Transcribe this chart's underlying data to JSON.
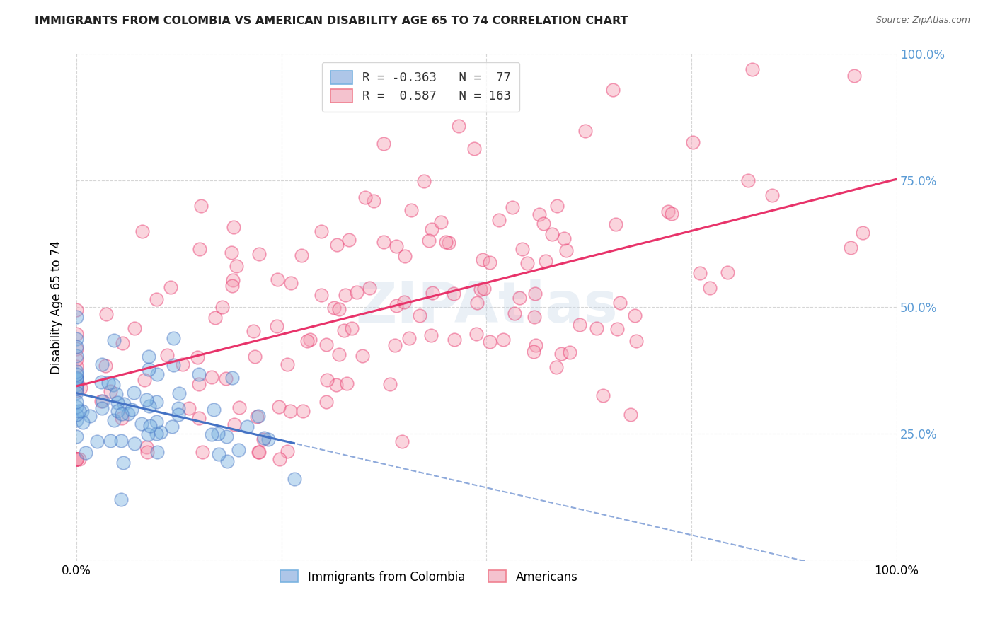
{
  "title": "IMMIGRANTS FROM COLOMBIA VS AMERICAN DISABILITY AGE 65 TO 74 CORRELATION CHART",
  "source": "Source: ZipAtlas.com",
  "ylabel": "Disability Age 65 to 74",
  "legend_label1": "Immigrants from Colombia",
  "legend_label2": "Americans",
  "legend_r1": "R = -0.363",
  "legend_n1": "N =  77",
  "legend_r2": "R =  0.587",
  "legend_n2": "N = 163",
  "watermark": "ZIPAtlas",
  "background_color": "#ffffff",
  "grid_color": "#cccccc",
  "colombia_color": "#7ab3e0",
  "colombia_line_color": "#4472c4",
  "american_color": "#f4a0b5",
  "american_line_color": "#e8336a",
  "colombia_R": -0.363,
  "colombia_N": 77,
  "american_R": 0.587,
  "american_N": 163,
  "xlim": [
    0.0,
    1.0
  ],
  "ylim": [
    0.0,
    1.0
  ],
  "right_tick_color": "#5b9bd5",
  "title_fontsize": 11.5,
  "source_fontsize": 9,
  "tick_fontsize": 12,
  "ylabel_fontsize": 12
}
